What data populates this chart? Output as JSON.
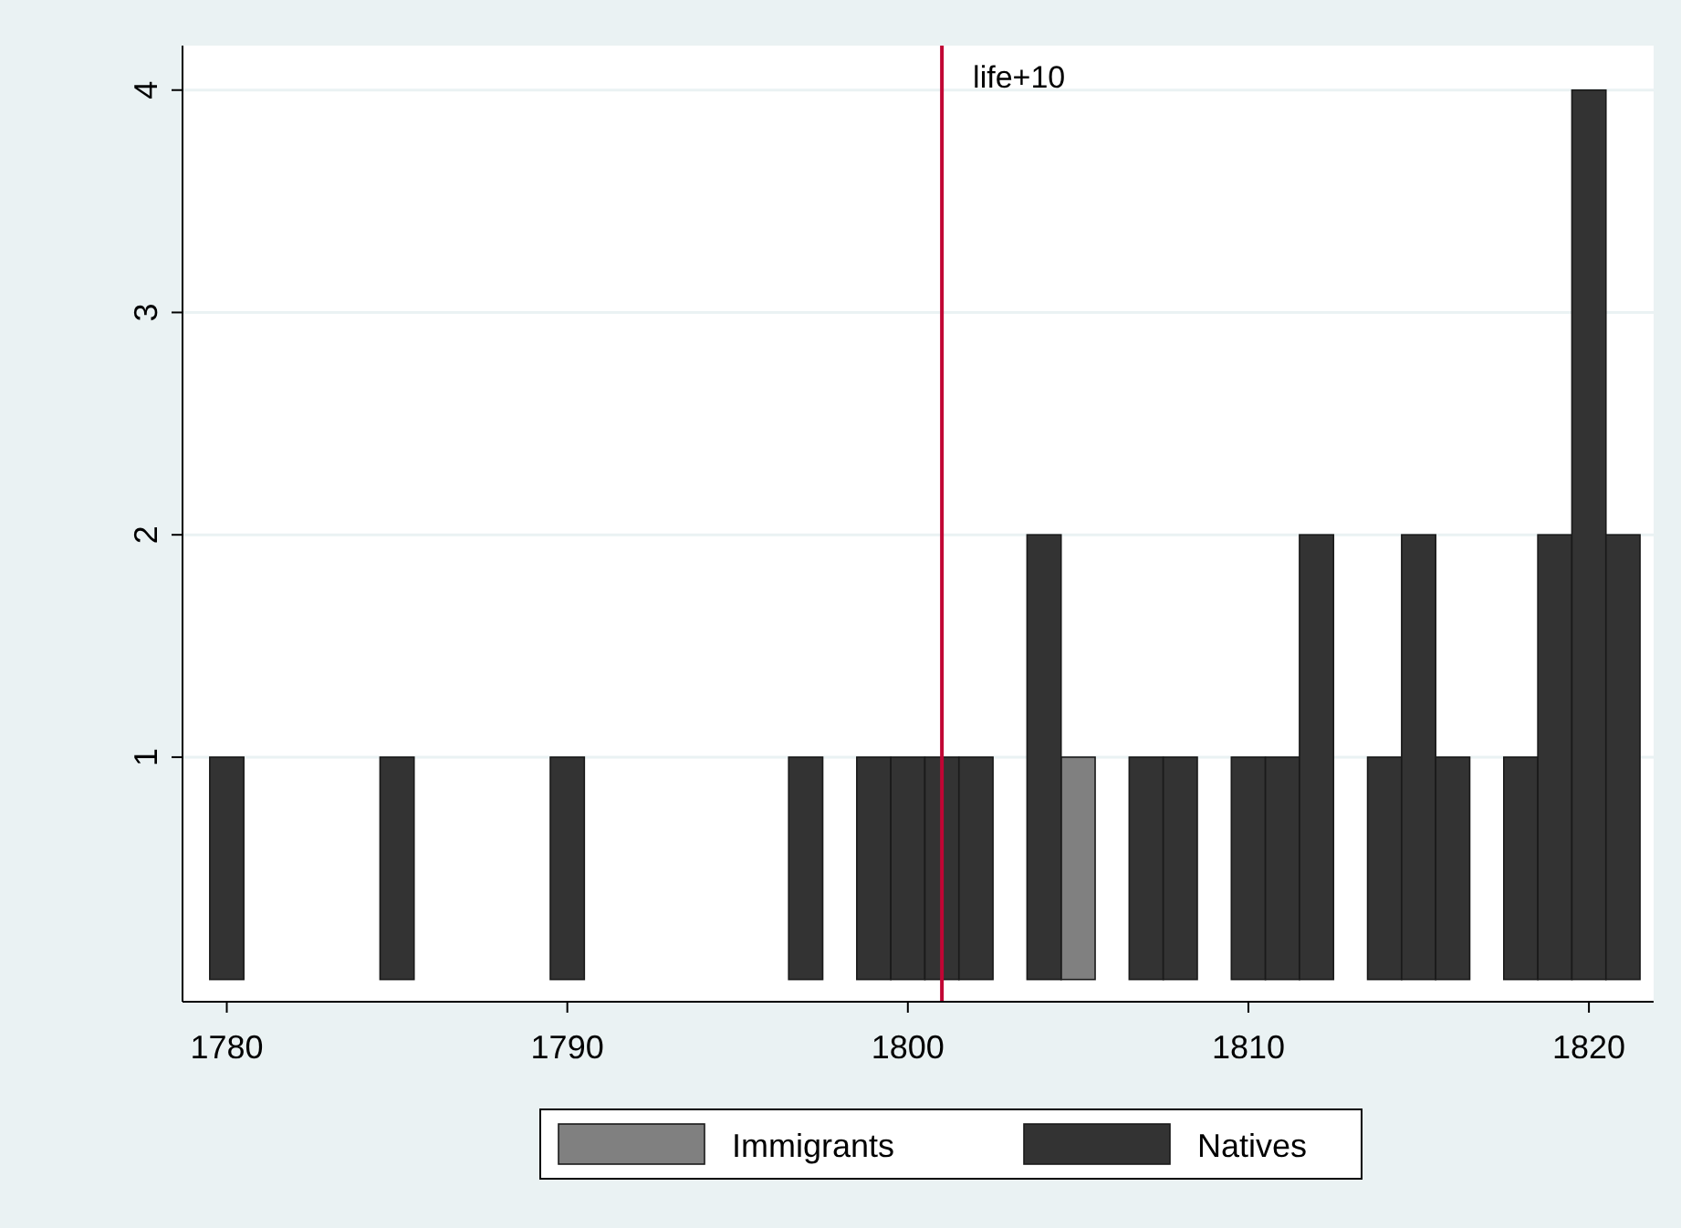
{
  "chart_data": {
    "type": "bar",
    "xlim": [
      1778.7,
      1821.9
    ],
    "xticks": [
      1780,
      1790,
      1800,
      1810,
      1820
    ],
    "ylim": [
      -0.1,
      4.2
    ],
    "yticks": [
      1,
      2,
      3,
      4
    ],
    "grid": "y",
    "legend": "bottom",
    "series": [
      {
        "name": "Immigrants",
        "color": "#808080",
        "x": [
          1805
        ],
        "values": [
          1
        ]
      },
      {
        "name": "Natives",
        "color": "#333333",
        "x": [
          1780,
          1785,
          1790,
          1797,
          1799,
          1800,
          1801,
          1802,
          1804,
          1807,
          1808,
          1810,
          1811,
          1812,
          1814,
          1815,
          1816,
          1818,
          1819,
          1820,
          1821
        ],
        "values": [
          1,
          1,
          1,
          1,
          1,
          1,
          1,
          1,
          2,
          1,
          1,
          1,
          1,
          2,
          1,
          2,
          1,
          1,
          2,
          4,
          2
        ]
      }
    ],
    "ref_lines": [
      {
        "axis": "x",
        "value": 1801,
        "label": "life+10",
        "color": "#c10534"
      }
    ]
  }
}
